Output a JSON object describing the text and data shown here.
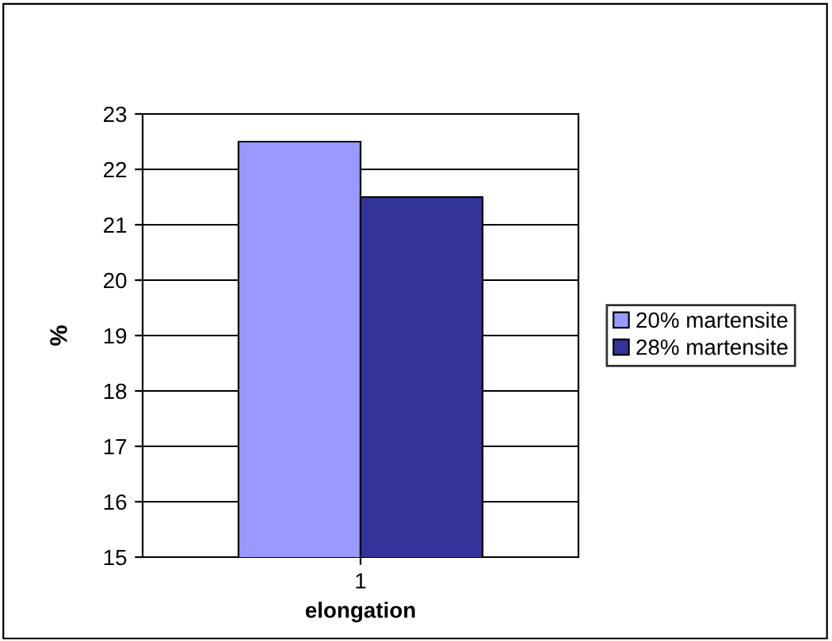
{
  "chart_data": {
    "type": "bar",
    "categories": [
      "1"
    ],
    "series": [
      {
        "name": "20% martensite",
        "color": "#9999ff",
        "values": [
          22.5
        ]
      },
      {
        "name": "28% martensite",
        "color": "#333399",
        "values": [
          21.5
        ]
      }
    ],
    "xlabel": "elongation",
    "ylabel": "%",
    "ylim": [
      15,
      23
    ],
    "yticks": [
      15,
      16,
      17,
      18,
      19,
      20,
      21,
      22,
      23
    ],
    "grid": "y",
    "legend": "right"
  }
}
